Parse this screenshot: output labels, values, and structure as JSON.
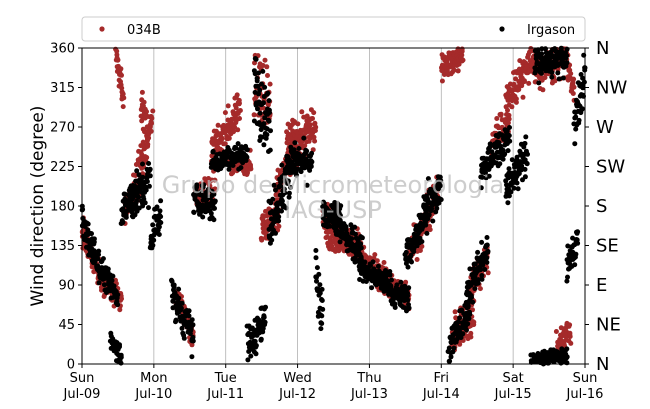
{
  "chart_data": {
    "type": "scatter",
    "ylabel": "Wind direction (degree)",
    "ylim": [
      0,
      360
    ],
    "yticks": [
      0,
      45,
      90,
      135,
      180,
      225,
      270,
      315,
      360
    ],
    "xlim": [
      "2017-07-09",
      "2017-07-16"
    ],
    "xticks": [
      {
        "day": "Sun",
        "date": "Jul-09"
      },
      {
        "day": "Mon",
        "date": "Jul-10"
      },
      {
        "day": "Tue",
        "date": "Jul-11"
      },
      {
        "day": "Wed",
        "date": "Jul-12"
      },
      {
        "day": "Thu",
        "date": "Jul-13"
      },
      {
        "day": "Fri",
        "date": "Jul-14"
      },
      {
        "day": "Sat",
        "date": "Jul-15"
      },
      {
        "day": "Sun",
        "date": "Jul-16"
      }
    ],
    "compass_labels": [
      "N",
      "NE",
      "E",
      "SE",
      "S",
      "SW",
      "W",
      "NW",
      "N"
    ],
    "grid": "vertical",
    "legend_position": "top",
    "watermark": [
      "Grupo de Micrometeorologia",
      "IAG-USP"
    ],
    "series": [
      {
        "name": "034B",
        "color": "#a52a2a",
        "segments": [
          [
            0.0,
            0.25,
            150,
            100,
            15
          ],
          [
            0.25,
            0.55,
            100,
            70,
            15
          ],
          [
            0.47,
            0.58,
            355,
            300,
            15
          ],
          [
            0.6,
            0.78,
            180,
            200,
            18
          ],
          [
            0.75,
            0.98,
            210,
            270,
            25
          ],
          [
            0.82,
            0.92,
            300,
            270,
            25
          ],
          [
            1.3,
            1.55,
            80,
            30,
            15
          ],
          [
            1.58,
            1.85,
            190,
            200,
            15
          ],
          [
            1.8,
            2.2,
            240,
            290,
            20
          ],
          [
            2.05,
            2.35,
            230,
            230,
            12
          ],
          [
            2.4,
            2.62,
            310,
            310,
            40
          ],
          [
            2.5,
            2.75,
            150,
            180,
            20
          ],
          [
            2.7,
            3.0,
            200,
            250,
            20
          ],
          [
            2.85,
            3.25,
            250,
            270,
            25
          ],
          [
            3.35,
            3.6,
            170,
            150,
            15
          ],
          [
            3.4,
            3.9,
            150,
            130,
            20
          ],
          [
            3.9,
            4.25,
            120,
            95,
            15
          ],
          [
            4.2,
            4.55,
            90,
            80,
            15
          ],
          [
            4.55,
            4.8,
            130,
            160,
            20
          ],
          [
            4.8,
            4.95,
            170,
            190,
            20
          ],
          [
            5.0,
            5.3,
            340,
            350,
            15
          ],
          [
            5.15,
            5.45,
            30,
            60,
            25
          ],
          [
            5.4,
            5.65,
            90,
            120,
            20
          ],
          [
            5.7,
            5.95,
            250,
            280,
            20
          ],
          [
            5.9,
            6.3,
            300,
            350,
            20
          ],
          [
            6.3,
            6.75,
            330,
            350,
            20
          ],
          [
            6.75,
            6.85,
            340,
            310,
            15
          ],
          [
            6.6,
            6.8,
            20,
            40,
            15
          ]
        ]
      },
      {
        "name": "Irgason",
        "color": "#000000",
        "segments": [
          [
            0.0,
            0.25,
            160,
            110,
            20
          ],
          [
            0.25,
            0.5,
            110,
            75,
            15
          ],
          [
            0.4,
            0.55,
            30,
            10,
            12
          ],
          [
            0.55,
            0.75,
            170,
            200,
            18
          ],
          [
            0.65,
            0.95,
            180,
            210,
            25
          ],
          [
            0.95,
            1.1,
            140,
            175,
            25
          ],
          [
            1.25,
            1.55,
            80,
            30,
            20
          ],
          [
            1.55,
            1.85,
            190,
            180,
            20
          ],
          [
            1.8,
            2.3,
            230,
            240,
            12
          ],
          [
            2.3,
            2.55,
            20,
            50,
            20
          ],
          [
            2.4,
            2.62,
            320,
            270,
            40
          ],
          [
            2.6,
            2.9,
            160,
            220,
            30
          ],
          [
            2.85,
            3.2,
            230,
            230,
            20
          ],
          [
            3.25,
            3.35,
            100,
            50,
            30
          ],
          [
            3.35,
            3.6,
            170,
            170,
            15
          ],
          [
            3.5,
            3.9,
            160,
            130,
            20
          ],
          [
            3.85,
            4.3,
            110,
            90,
            15
          ],
          [
            4.3,
            4.55,
            80,
            75,
            15
          ],
          [
            4.5,
            4.8,
            120,
            170,
            20
          ],
          [
            4.75,
            5.0,
            180,
            200,
            25
          ],
          [
            5.1,
            5.4,
            20,
            60,
            20
          ],
          [
            5.35,
            5.65,
            80,
            130,
            20
          ],
          [
            5.55,
            5.95,
            220,
            260,
            20
          ],
          [
            5.9,
            6.2,
            200,
            240,
            20
          ],
          [
            6.25,
            6.75,
            5,
            10,
            8
          ],
          [
            6.3,
            6.75,
            340,
            350,
            20
          ],
          [
            6.75,
            6.9,
            110,
            140,
            20
          ],
          [
            6.85,
            7.0,
            270,
            330,
            25
          ]
        ]
      }
    ]
  }
}
